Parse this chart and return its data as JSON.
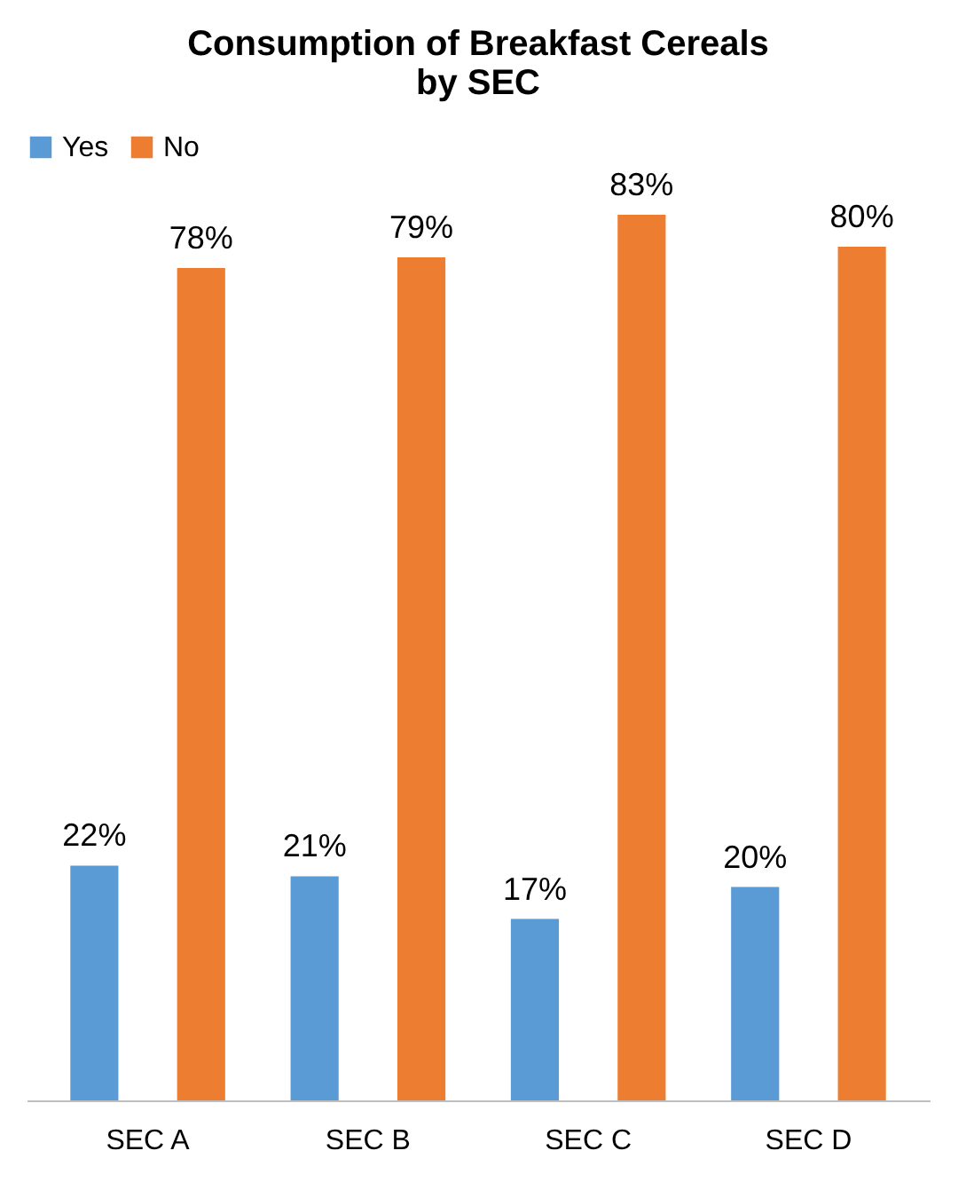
{
  "chart_data": {
    "type": "bar",
    "title": "Consumption of Breakfast Cereals\nby SEC",
    "categories": [
      "SEC A",
      "SEC B",
      "SEC C",
      "SEC D"
    ],
    "series": [
      {
        "name": "Yes",
        "color": "#5b9bd5",
        "values": [
          22,
          21,
          17,
          20
        ],
        "value_labels": [
          "22%",
          "21%",
          "17%",
          "20%"
        ]
      },
      {
        "name": "No",
        "color": "#ed7d31",
        "values": [
          78,
          79,
          83,
          80
        ],
        "value_labels": [
          "78%",
          "79%",
          "83%",
          "80%"
        ]
      }
    ],
    "legend": "top",
    "tick_labels": "x"
  }
}
